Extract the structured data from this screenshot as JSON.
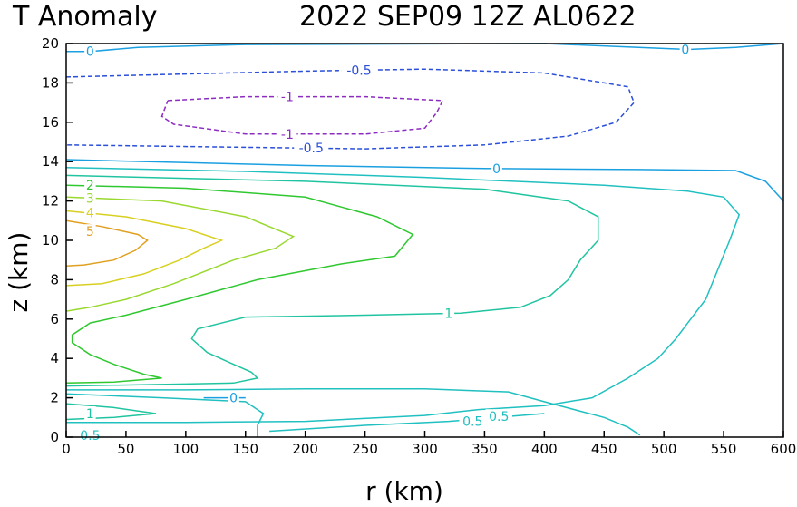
{
  "chart_data": {
    "type": "contour",
    "title_left": "T Anomaly",
    "title_right": "2022 SEP09 12Z  AL0622",
    "xlabel": "r (km)",
    "ylabel": "z (km)",
    "xlim": [
      0,
      600
    ],
    "ylim": [
      0,
      20
    ],
    "x_ticks": [
      "0",
      "50",
      "100",
      "150",
      "200",
      "250",
      "300",
      "350",
      "400",
      "450",
      "500",
      "550",
      "600"
    ],
    "y_ticks": [
      "0",
      "2",
      "4",
      "6",
      "8",
      "10",
      "12",
      "14",
      "16",
      "18",
      "20"
    ],
    "contour_levels": [
      {
        "level": -1,
        "label": "-1",
        "color": "#8c2cc0",
        "dashed": true
      },
      {
        "level": -0.5,
        "label": "-0.5",
        "color": "#2a4fd8",
        "dashed": true
      },
      {
        "level": 0,
        "label": "0",
        "color": "#1aa0e0",
        "dashed": false
      },
      {
        "level": 0.5,
        "label": "0.5",
        "color": "#20c0c0",
        "dashed": false
      },
      {
        "level": 1,
        "label": "1",
        "color": "#20c4a0",
        "dashed": false
      },
      {
        "level": 2,
        "label": "2",
        "color": "#30c830",
        "dashed": false
      },
      {
        "level": 3,
        "label": "3",
        "color": "#9ad830",
        "dashed": false
      },
      {
        "level": 4,
        "label": "4",
        "color": "#d8d020",
        "dashed": false
      },
      {
        "level": 5,
        "label": "5",
        "color": "#e0a020",
        "dashed": false
      }
    ],
    "contours": [
      {
        "label": "0",
        "color": "#1aa0e0",
        "dashed": false,
        "points": [
          [
            0,
            19.6
          ],
          [
            20,
            19.6
          ],
          [
            60,
            19.8
          ],
          [
            150,
            19.95
          ],
          [
            400,
            20.0
          ],
          [
            520,
            19.7
          ],
          [
            560,
            19.8
          ],
          [
            600,
            20.0
          ]
        ]
      },
      {
        "label": "-0.5",
        "color": "#2a4fd8",
        "dashed": true,
        "points": [
          [
            0,
            18.3
          ],
          [
            100,
            18.45
          ],
          [
            200,
            18.6
          ],
          [
            300,
            18.7
          ],
          [
            400,
            18.5
          ],
          [
            470,
            17.8
          ],
          [
            475,
            17.0
          ],
          [
            460,
            16.0
          ],
          [
            420,
            15.3
          ],
          [
            350,
            14.85
          ],
          [
            250,
            14.65
          ],
          [
            120,
            14.75
          ],
          [
            0,
            14.85
          ]
        ]
      },
      {
        "label": "-1",
        "color": "#8c2cc0",
        "dashed": true,
        "points": [
          [
            85,
            17.1
          ],
          [
            150,
            17.3
          ],
          [
            250,
            17.3
          ],
          [
            315,
            17.1
          ],
          [
            310,
            16.5
          ],
          [
            300,
            15.7
          ],
          [
            250,
            15.4
          ],
          [
            150,
            15.4
          ],
          [
            90,
            15.9
          ],
          [
            80,
            16.3
          ],
          [
            85,
            17.1
          ]
        ]
      },
      {
        "label": "0",
        "color": "#1aa0e0",
        "dashed": false,
        "points": [
          [
            0,
            14.1
          ],
          [
            100,
            13.95
          ],
          [
            200,
            13.8
          ],
          [
            350,
            13.65
          ],
          [
            480,
            13.6
          ],
          [
            560,
            13.55
          ],
          [
            585,
            13.0
          ],
          [
            600,
            12.0
          ]
        ]
      },
      {
        "label": "0.5",
        "color": "#20c0c0",
        "dashed": false,
        "points": [
          [
            0,
            13.7
          ],
          [
            150,
            13.5
          ],
          [
            300,
            13.2
          ],
          [
            450,
            12.8
          ],
          [
            520,
            12.5
          ],
          [
            550,
            12.2
          ],
          [
            563,
            11.3
          ],
          [
            555,
            10.0
          ],
          [
            545,
            8.5
          ],
          [
            535,
            7.0
          ],
          [
            520,
            5.8
          ],
          [
            510,
            5.0
          ],
          [
            495,
            4.0
          ],
          [
            470,
            3.0
          ],
          [
            440,
            2.0
          ],
          [
            400,
            1.6
          ],
          [
            345,
            1.4
          ],
          [
            300,
            1.1
          ],
          [
            200,
            0.8
          ],
          [
            100,
            0.75
          ],
          [
            0,
            0.75
          ]
        ]
      },
      {
        "label": "1",
        "color": "#20c4a0",
        "dashed": false,
        "points": [
          [
            0,
            13.3
          ],
          [
            200,
            13.0
          ],
          [
            350,
            12.6
          ],
          [
            420,
            12.0
          ],
          [
            445,
            11.2
          ],
          [
            445,
            10.0
          ],
          [
            430,
            9.0
          ],
          [
            420,
            8.0
          ],
          [
            405,
            7.2
          ],
          [
            380,
            6.6
          ],
          [
            330,
            6.3
          ],
          [
            250,
            6.2
          ],
          [
            150,
            6.1
          ],
          [
            110,
            5.5
          ],
          [
            105,
            5.0
          ],
          [
            118,
            4.3
          ],
          [
            140,
            3.7
          ],
          [
            155,
            3.3
          ],
          [
            160,
            3.0
          ],
          [
            140,
            2.75
          ],
          [
            100,
            2.7
          ],
          [
            0,
            2.6
          ]
        ]
      },
      {
        "label": "2",
        "color": "#30c830",
        "dashed": false,
        "points": [
          [
            0,
            12.8
          ],
          [
            100,
            12.65
          ],
          [
            200,
            12.2
          ],
          [
            260,
            11.2
          ],
          [
            290,
            10.3
          ],
          [
            275,
            9.2
          ],
          [
            230,
            8.8
          ],
          [
            160,
            8.0
          ],
          [
            100,
            7.0
          ],
          [
            50,
            6.2
          ],
          [
            20,
            5.8
          ],
          [
            5,
            5.2
          ],
          [
            5,
            4.8
          ],
          [
            20,
            4.2
          ],
          [
            40,
            3.7
          ],
          [
            65,
            3.2
          ],
          [
            80,
            3.0
          ],
          [
            40,
            2.8
          ],
          [
            0,
            2.75
          ]
        ]
      },
      {
        "label": "3",
        "color": "#9ad830",
        "dashed": false,
        "points": [
          [
            0,
            12.2
          ],
          [
            80,
            12.0
          ],
          [
            150,
            11.2
          ],
          [
            190,
            10.2
          ],
          [
            175,
            9.6
          ],
          [
            140,
            9.0
          ],
          [
            90,
            7.8
          ],
          [
            50,
            7.0
          ],
          [
            20,
            6.6
          ],
          [
            0,
            6.4
          ]
        ]
      },
      {
        "label": "4",
        "color": "#d8d020",
        "dashed": false,
        "points": [
          [
            0,
            11.5
          ],
          [
            50,
            11.2
          ],
          [
            100,
            10.6
          ],
          [
            130,
            10.0
          ],
          [
            115,
            9.6
          ],
          [
            95,
            9.0
          ],
          [
            65,
            8.3
          ],
          [
            30,
            7.8
          ],
          [
            0,
            7.7
          ]
        ]
      },
      {
        "label": "5",
        "color": "#e0a020",
        "dashed": false,
        "points": [
          [
            0,
            11.0
          ],
          [
            30,
            10.7
          ],
          [
            60,
            10.3
          ],
          [
            68,
            10.0
          ],
          [
            58,
            9.5
          ],
          [
            40,
            9.0
          ],
          [
            15,
            8.75
          ],
          [
            0,
            8.7
          ]
        ]
      },
      {
        "label": "1",
        "color": "#20c4a0",
        "dashed": false,
        "points": [
          [
            0,
            1.7
          ],
          [
            40,
            1.5
          ],
          [
            75,
            1.2
          ],
          [
            40,
            1.0
          ],
          [
            0,
            0.9
          ]
        ]
      },
      {
        "label": "0.5",
        "color": "#20c0c0",
        "dashed": false,
        "points": [
          [
            0,
            2.4
          ],
          [
            100,
            2.4
          ],
          [
            200,
            2.45
          ],
          [
            300,
            2.45
          ],
          [
            370,
            2.3
          ],
          [
            400,
            1.8
          ],
          [
            450,
            1.0
          ],
          [
            470,
            0.5
          ],
          [
            480,
            0.1
          ]
        ]
      },
      {
        "label": "0.5",
        "color": "#20c0c0",
        "dashed": false,
        "points": [
          [
            0,
            2.2
          ],
          [
            80,
            2.0
          ],
          [
            150,
            1.8
          ],
          [
            165,
            1.2
          ],
          [
            160,
            0.6
          ],
          [
            160,
            0.0
          ]
        ]
      },
      {
        "label": "0",
        "color": "#1aa0e0",
        "dashed": false,
        "points": [
          [
            115,
            2.0
          ],
          [
            150,
            2.0
          ]
        ]
      },
      {
        "label": "0.5",
        "color": "#20c0c0",
        "dashed": false,
        "points": [
          [
            170,
            0.3
          ],
          [
            250,
            0.6
          ],
          [
            320,
            0.8
          ],
          [
            360,
            1.0
          ],
          [
            400,
            1.2
          ]
        ]
      }
    ],
    "contour_labels": [
      {
        "text": "0",
        "x": 20,
        "y": 19.6,
        "color": "#1aa0e0"
      },
      {
        "text": "0",
        "x": 518,
        "y": 19.7,
        "color": "#1aa0e0"
      },
      {
        "text": "-0.5",
        "x": 245,
        "y": 18.65,
        "color": "#2a4fd8"
      },
      {
        "text": "-1",
        "x": 185,
        "y": 17.3,
        "color": "#8c2cc0"
      },
      {
        "text": "-1",
        "x": 185,
        "y": 15.4,
        "color": "#8c2cc0"
      },
      {
        "text": "-0.5",
        "x": 205,
        "y": 14.7,
        "color": "#2a4fd8"
      },
      {
        "text": "0",
        "x": 360,
        "y": 13.65,
        "color": "#1aa0e0"
      },
      {
        "text": "2",
        "x": 20,
        "y": 12.8,
        "color": "#30c830"
      },
      {
        "text": "3",
        "x": 20,
        "y": 12.15,
        "color": "#9ad830"
      },
      {
        "text": "4",
        "x": 20,
        "y": 11.4,
        "color": "#d8d020"
      },
      {
        "text": "5",
        "x": 20,
        "y": 10.45,
        "color": "#e0a020"
      },
      {
        "text": "1",
        "x": 320,
        "y": 6.3,
        "color": "#20c4a0"
      },
      {
        "text": "0",
        "x": 140,
        "y": 2.0,
        "color": "#1aa0e0"
      },
      {
        "text": "1",
        "x": 20,
        "y": 1.2,
        "color": "#20c4a0"
      },
      {
        "text": "0.5",
        "x": 20,
        "y": 0.1,
        "color": "#20c0c0"
      },
      {
        "text": "0.5",
        "x": 340,
        "y": 0.8,
        "color": "#20c0c0"
      },
      {
        "text": "0.5",
        "x": 362,
        "y": 1.05,
        "color": "#20c0c0"
      }
    ]
  }
}
